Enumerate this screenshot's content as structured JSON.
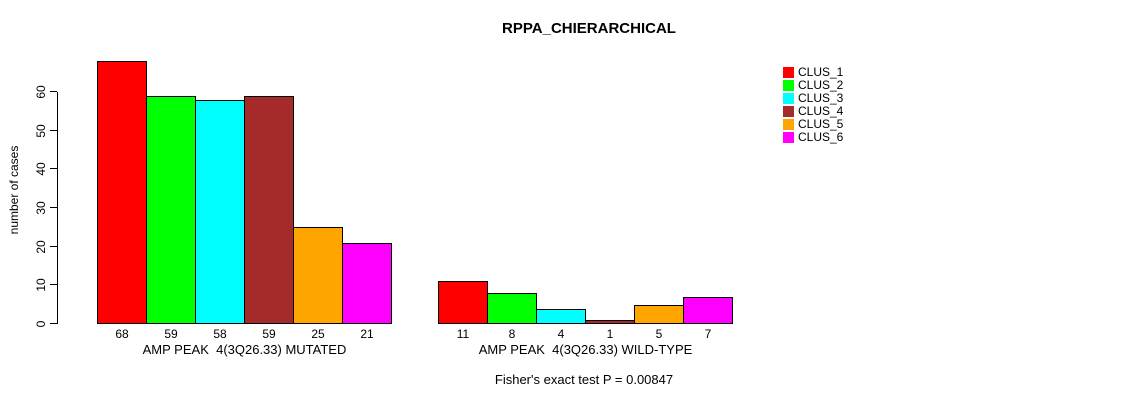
{
  "chart_data": {
    "type": "bar",
    "title": "RPPA_CHIERARCHICAL",
    "ylabel": "number of cases",
    "footer": "Fisher's exact test P = 0.00847",
    "ylim": [
      0,
      60
    ],
    "yticks": [
      0,
      10,
      20,
      30,
      40,
      50,
      60
    ],
    "grid": false,
    "legend_position": "right",
    "series_colors": [
      "#ff0000",
      "#00ff00",
      "#00ffff",
      "#a52a2a",
      "#ffa500",
      "#ff00ff"
    ],
    "groups": [
      {
        "label": "AMP PEAK  4(3Q26.33) MUTATED",
        "values": [
          68,
          59,
          58,
          59,
          25,
          21
        ]
      },
      {
        "label": "AMP PEAK  4(3Q26.33) WILD-TYPE",
        "values": [
          11,
          8,
          4,
          1,
          5,
          7
        ]
      }
    ],
    "legend": [
      {
        "label": "CLUS_1",
        "color": "#ff0000"
      },
      {
        "label": "CLUS_2",
        "color": "#00ff00"
      },
      {
        "label": "CLUS_3",
        "color": "#00ffff"
      },
      {
        "label": "CLUS_4",
        "color": "#a52a2a"
      },
      {
        "label": "CLUS_5",
        "color": "#ffa500"
      },
      {
        "label": "CLUS_6",
        "color": "#ff00ff"
      }
    ]
  }
}
